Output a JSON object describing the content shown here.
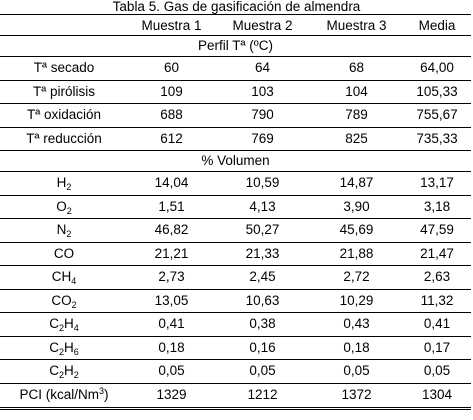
{
  "caption": "Tabla 5. Gas de gasificación de almendra",
  "headers": [
    "",
    "Muestra 1",
    "Muestra 2",
    "Muestra 3",
    "Media"
  ],
  "section1": "Perfil Tª (ºC)",
  "section2": "% Volumen",
  "temp_rows": [
    {
      "label": "Tª secado",
      "v1": "60",
      "v2": "64",
      "v3": "68",
      "mean": "64,00"
    },
    {
      "label": "Tª pirólisis",
      "v1": "109",
      "v2": "103",
      "v3": "104",
      "mean": "105,33"
    },
    {
      "label": "Tª oxidación",
      "v1": "688",
      "v2": "790",
      "v3": "789",
      "mean": "755,67"
    },
    {
      "label": "Tª reducción",
      "v1": "612",
      "v2": "769",
      "v3": "825",
      "mean": "735,33"
    }
  ],
  "gas_rows": [
    {
      "label_main": "H",
      "label_sub": "2",
      "label_rest": "",
      "label_sub2": "",
      "v1": "14,04",
      "v2": "10,59",
      "v3": "14,87",
      "mean": "13,17"
    },
    {
      "label_main": "O",
      "label_sub": "2",
      "label_rest": "",
      "label_sub2": "",
      "v1": "1,51",
      "v2": "4,13",
      "v3": "3,90",
      "mean": "3,18"
    },
    {
      "label_main": "N",
      "label_sub": "2",
      "label_rest": "",
      "label_sub2": "",
      "v1": "46,82",
      "v2": "50,27",
      "v3": "45,69",
      "mean": "47,59"
    },
    {
      "label_main": "CO",
      "label_sub": "",
      "label_rest": "",
      "label_sub2": "",
      "v1": "21,21",
      "v2": "21,33",
      "v3": "21,88",
      "mean": "21,47"
    },
    {
      "label_main": "CH",
      "label_sub": "4",
      "label_rest": "",
      "label_sub2": "",
      "v1": "2,73",
      "v2": "2,45",
      "v3": "2,72",
      "mean": "2,63"
    },
    {
      "label_main": "CO",
      "label_sub": "2",
      "label_rest": "",
      "label_sub2": "",
      "v1": "13,05",
      "v2": "10,63",
      "v3": "10,29",
      "mean": "11,32"
    },
    {
      "label_main": "C",
      "label_sub": "2",
      "label_rest": "H",
      "label_sub2": "4",
      "v1": "0,41",
      "v2": "0,38",
      "v3": "0,43",
      "mean": "0,41"
    },
    {
      "label_main": "C",
      "label_sub": "2",
      "label_rest": "H",
      "label_sub2": "6",
      "v1": "0,18",
      "v2": "0,16",
      "v3": "0,18",
      "mean": "0,17"
    },
    {
      "label_main": "C",
      "label_sub": "2",
      "label_rest": "H",
      "label_sub2": "2",
      "v1": "0,05",
      "v2": "0,05",
      "v3": "0,05",
      "mean": "0,05"
    }
  ],
  "pci_row": {
    "label_main": "PCI (kcal/Nm",
    "label_sup": "3",
    "label_end": ")",
    "v1": "1329",
    "v2": "1212",
    "v3": "1372",
    "mean": "1304"
  }
}
